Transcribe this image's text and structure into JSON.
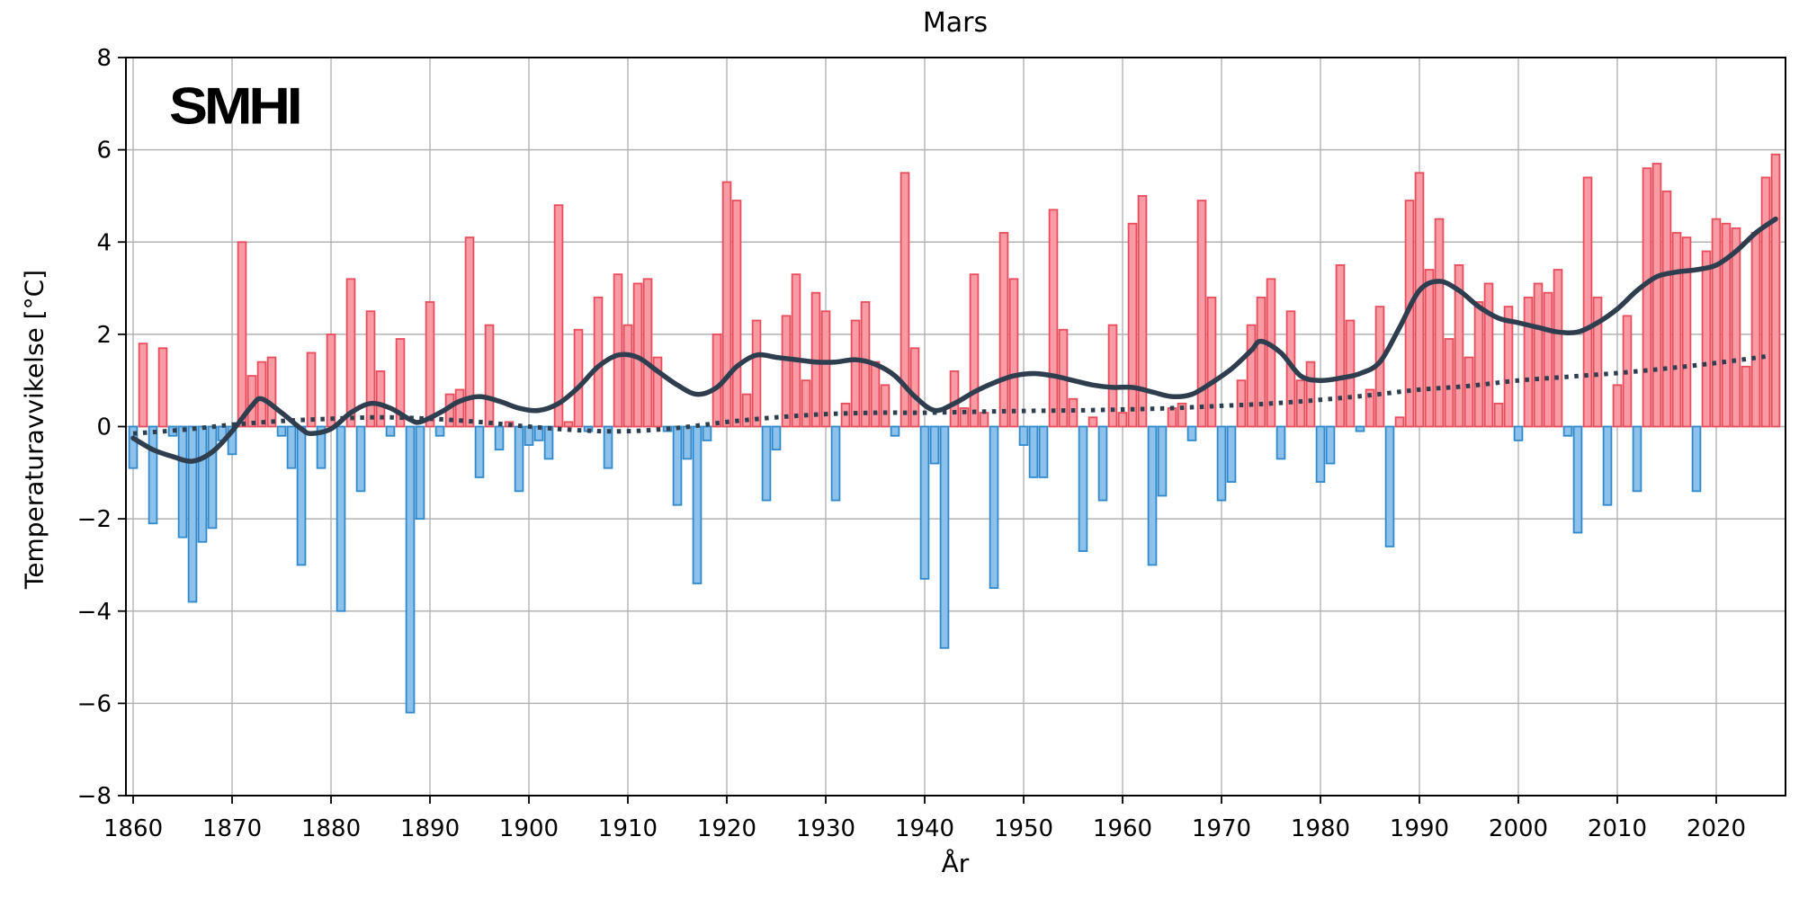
{
  "title": "Mars",
  "logo": {
    "text": "SMHI"
  },
  "colors": {
    "positive_fill": "#F89BA4",
    "positive_edge": "#E94D5C",
    "negative_fill": "#8BC1EA",
    "negative_edge": "#3189CB",
    "line": "#2E3E4E",
    "grid": "#B3B3B3",
    "spine": "#000000",
    "text": "#000000",
    "background": "#FFFFFF"
  },
  "chart_data": {
    "type": "bar",
    "title": "Mars",
    "xlabel": "År",
    "ylabel": "Temperaturavvikelse [°C]",
    "xlim": [
      1859.27,
      2027.0
    ],
    "ylim": [
      -8,
      8
    ],
    "grid": true,
    "legend": "none",
    "xticks": [
      1860,
      1870,
      1880,
      1890,
      1900,
      1910,
      1920,
      1930,
      1940,
      1950,
      1960,
      1970,
      1980,
      1990,
      2000,
      2010,
      2020
    ],
    "yticks": [
      8,
      6,
      4,
      2,
      0,
      -2,
      -4,
      -6,
      -8
    ],
    "bar_width_years": 0.8,
    "start_year": 1860,
    "series": [
      {
        "name": "Temperaturavvikelse",
        "type": "bar",
        "values": [
          -0.9,
          1.8,
          -2.1,
          1.7,
          -0.2,
          -2.4,
          -3.8,
          -2.5,
          -2.2,
          -0.3,
          -0.6,
          4.0,
          1.1,
          1.4,
          1.5,
          -0.2,
          -0.9,
          -3.0,
          1.6,
          -0.9,
          2.0,
          -4.0,
          3.2,
          -1.4,
          2.5,
          1.2,
          -0.2,
          1.9,
          -6.2,
          -2.0,
          2.7,
          -0.2,
          0.7,
          0.8,
          4.1,
          -1.1,
          2.2,
          -0.5,
          0.1,
          -1.4,
          -0.4,
          -0.3,
          -0.7,
          4.8,
          0.1,
          2.1,
          -0.1,
          2.8,
          -0.9,
          3.3,
          2.2,
          3.1,
          3.2,
          1.5,
          -0.1,
          -1.7,
          -0.7,
          -3.4,
          -0.3,
          2.0,
          5.3,
          4.9,
          0.7,
          2.3,
          -1.6,
          -0.5,
          2.4,
          3.3,
          1.0,
          2.9,
          2.5,
          -1.6,
          0.5,
          2.3,
          2.7,
          1.4,
          0.9,
          -0.2,
          5.5,
          1.7,
          -3.3,
          -0.8,
          -4.8,
          1.2,
          0.4,
          3.3,
          0.3,
          -3.5,
          4.2,
          3.2,
          -0.4,
          -1.1,
          -1.1,
          4.7,
          2.1,
          0.6,
          -2.7,
          0.2,
          -1.6,
          2.2,
          0.3,
          4.4,
          5.0,
          -3.0,
          -1.5,
          0.4,
          0.5,
          -0.3,
          4.9,
          2.8,
          -1.6,
          -1.2,
          1.0,
          2.2,
          2.8,
          3.2,
          -0.7,
          2.5,
          1.0,
          1.4,
          -1.2,
          -0.8,
          3.5,
          2.3,
          -0.1,
          0.8,
          2.6,
          -2.6,
          0.2,
          4.9,
          5.5,
          3.4,
          4.5,
          1.9,
          3.5,
          1.5,
          2.7,
          3.1,
          0.5,
          2.6,
          -0.3,
          2.8,
          3.1,
          2.9,
          3.4,
          -0.2,
          -2.3,
          5.4,
          2.8,
          -1.7,
          0.9,
          2.4,
          -1.4,
          5.6,
          5.7,
          5.1,
          4.2,
          4.1,
          -1.4,
          3.8,
          4.5,
          4.4,
          4.3,
          1.3,
          4.2,
          5.4,
          5.9
        ]
      },
      {
        "name": "smoothed-curve",
        "type": "line",
        "style": "solid",
        "points": [
          [
            1860,
            -0.25
          ],
          [
            1862,
            -0.5
          ],
          [
            1864,
            -0.65
          ],
          [
            1866,
            -0.75
          ],
          [
            1868,
            -0.55
          ],
          [
            1870,
            -0.1
          ],
          [
            1872,
            0.45
          ],
          [
            1873,
            0.6
          ],
          [
            1875,
            0.3
          ],
          [
            1877,
            -0.05
          ],
          [
            1878,
            -0.15
          ],
          [
            1880,
            -0.05
          ],
          [
            1882,
            0.3
          ],
          [
            1884,
            0.5
          ],
          [
            1886,
            0.4
          ],
          [
            1888,
            0.15
          ],
          [
            1889,
            0.1
          ],
          [
            1891,
            0.3
          ],
          [
            1893,
            0.55
          ],
          [
            1895,
            0.65
          ],
          [
            1897,
            0.55
          ],
          [
            1899,
            0.4
          ],
          [
            1901,
            0.35
          ],
          [
            1903,
            0.5
          ],
          [
            1905,
            0.85
          ],
          [
            1907,
            1.3
          ],
          [
            1909,
            1.55
          ],
          [
            1911,
            1.5
          ],
          [
            1913,
            1.2
          ],
          [
            1915,
            0.9
          ],
          [
            1917,
            0.7
          ],
          [
            1919,
            0.85
          ],
          [
            1921,
            1.3
          ],
          [
            1923,
            1.55
          ],
          [
            1925,
            1.5
          ],
          [
            1927,
            1.45
          ],
          [
            1929,
            1.4
          ],
          [
            1931,
            1.4
          ],
          [
            1933,
            1.45
          ],
          [
            1935,
            1.35
          ],
          [
            1937,
            1.1
          ],
          [
            1939,
            0.65
          ],
          [
            1941,
            0.35
          ],
          [
            1943,
            0.5
          ],
          [
            1945,
            0.75
          ],
          [
            1947,
            0.95
          ],
          [
            1949,
            1.1
          ],
          [
            1951,
            1.15
          ],
          [
            1953,
            1.1
          ],
          [
            1955,
            1.0
          ],
          [
            1957,
            0.9
          ],
          [
            1959,
            0.85
          ],
          [
            1961,
            0.85
          ],
          [
            1963,
            0.75
          ],
          [
            1965,
            0.65
          ],
          [
            1967,
            0.7
          ],
          [
            1969,
            0.95
          ],
          [
            1971,
            1.25
          ],
          [
            1973,
            1.65
          ],
          [
            1974,
            1.85
          ],
          [
            1976,
            1.6
          ],
          [
            1978,
            1.1
          ],
          [
            1980,
            1.0
          ],
          [
            1982,
            1.05
          ],
          [
            1984,
            1.15
          ],
          [
            1986,
            1.4
          ],
          [
            1988,
            2.15
          ],
          [
            1990,
            2.95
          ],
          [
            1992,
            3.15
          ],
          [
            1994,
            2.95
          ],
          [
            1996,
            2.6
          ],
          [
            1998,
            2.35
          ],
          [
            2000,
            2.25
          ],
          [
            2002,
            2.15
          ],
          [
            2004,
            2.05
          ],
          [
            2006,
            2.05
          ],
          [
            2008,
            2.25
          ],
          [
            2010,
            2.55
          ],
          [
            2012,
            2.95
          ],
          [
            2014,
            3.25
          ],
          [
            2016,
            3.35
          ],
          [
            2018,
            3.4
          ],
          [
            2020,
            3.5
          ],
          [
            2022,
            3.8
          ],
          [
            2024,
            4.2
          ],
          [
            2026,
            4.5
          ]
        ]
      },
      {
        "name": "trend-curve",
        "type": "line",
        "style": "dotted",
        "points": [
          [
            1860,
            -0.15
          ],
          [
            1865,
            -0.07
          ],
          [
            1870,
            0.04
          ],
          [
            1875,
            0.12
          ],
          [
            1880,
            0.17
          ],
          [
            1885,
            0.2
          ],
          [
            1890,
            0.17
          ],
          [
            1895,
            0.1
          ],
          [
            1900,
            0.0
          ],
          [
            1905,
            -0.08
          ],
          [
            1910,
            -0.1
          ],
          [
            1915,
            -0.03
          ],
          [
            1920,
            0.1
          ],
          [
            1925,
            0.2
          ],
          [
            1930,
            0.27
          ],
          [
            1935,
            0.3
          ],
          [
            1940,
            0.3
          ],
          [
            1945,
            0.32
          ],
          [
            1950,
            0.34
          ],
          [
            1955,
            0.35
          ],
          [
            1960,
            0.37
          ],
          [
            1965,
            0.4
          ],
          [
            1970,
            0.45
          ],
          [
            1975,
            0.5
          ],
          [
            1980,
            0.58
          ],
          [
            1985,
            0.68
          ],
          [
            1990,
            0.8
          ],
          [
            1995,
            0.88
          ],
          [
            2000,
            1.0
          ],
          [
            2005,
            1.08
          ],
          [
            2010,
            1.16
          ],
          [
            2015,
            1.26
          ],
          [
            2020,
            1.38
          ],
          [
            2025,
            1.52
          ]
        ]
      }
    ]
  }
}
